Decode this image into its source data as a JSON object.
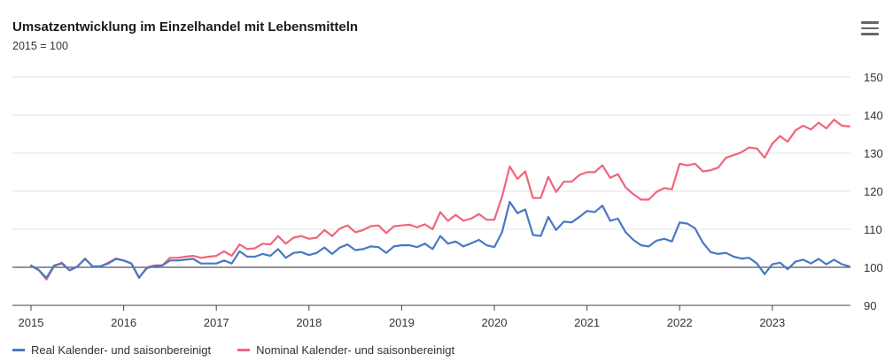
{
  "title": "Umsatzentwicklung im Einzelhandel mit Lebensmitteln",
  "subtitle": "2015 = 100",
  "menu_icon": "hamburger-menu-icon",
  "colors": {
    "real": "#4a78c2",
    "nominal": "#f0657c",
    "grid": "#e6e6e6",
    "baseline": "#555555"
  },
  "chart_data": {
    "type": "line",
    "title": "Umsatzentwicklung im Einzelhandel mit Lebensmitteln",
    "subtitle": "2015 = 100",
    "xlabel": "",
    "ylabel": "",
    "ylim": [
      90,
      150
    ],
    "yticks": [
      90,
      100,
      110,
      120,
      130,
      140,
      150
    ],
    "ytick_labels": [
      "90",
      "100",
      "110",
      "120",
      "130",
      "140",
      "150"
    ],
    "xticks": [
      "2015",
      "2016",
      "2017",
      "2018",
      "2019",
      "2020",
      "2021",
      "2022",
      "2023"
    ],
    "x_start": "2015-01",
    "grid": true,
    "reference_line": 100,
    "legend_position": "bottom-left",
    "series": [
      {
        "name": "Real Kalender- und saisonbereinigt",
        "color": "#4a78c2",
        "values": [
          100.5,
          99.3,
          97.2,
          100.5,
          101.0,
          99.2,
          100.2,
          102.2,
          100.2,
          100.3,
          101.0,
          102.2,
          101.8,
          101.0,
          97.3,
          99.8,
          100.3,
          100.5,
          101.8,
          101.8,
          102.0,
          102.2,
          101.0,
          101.0,
          101.0,
          101.8,
          101.0,
          104.2,
          102.8,
          102.8,
          103.5,
          103.0,
          104.8,
          102.5,
          103.8,
          104.0,
          103.2,
          103.8,
          105.2,
          103.5,
          105.2,
          106.0,
          104.5,
          104.8,
          105.5,
          105.3,
          103.8,
          105.5,
          105.8,
          105.8,
          105.3,
          106.2,
          104.8,
          108.2,
          106.2,
          106.8,
          105.5,
          106.3,
          107.2,
          105.8,
          105.3,
          109.2,
          117.2,
          114.2,
          115.2,
          108.5,
          108.2,
          113.2,
          109.8,
          112.0,
          111.8,
          113.2,
          114.8,
          114.5,
          116.2,
          112.2,
          112.8,
          109.2,
          107.2,
          105.8,
          105.5,
          107.0,
          107.5,
          106.8,
          111.8,
          111.5,
          110.2,
          106.5,
          104.0,
          103.5,
          103.8,
          102.8,
          102.3,
          102.5,
          101.0,
          98.2,
          100.8,
          101.2,
          99.5,
          101.5,
          102.0,
          101.0,
          102.2,
          100.8,
          102.0,
          100.8,
          100.2
        ]
      },
      {
        "name": "Nominal Kalender- und saisonbereinigt",
        "color": "#f0657c",
        "values": [
          100.3,
          99.3,
          96.8,
          100.3,
          101.2,
          99.2,
          100.2,
          102.3,
          100.2,
          100.2,
          101.2,
          102.3,
          101.8,
          101.0,
          97.2,
          100.0,
          100.5,
          100.5,
          102.5,
          102.5,
          102.8,
          103.0,
          102.5,
          102.8,
          103.0,
          104.2,
          103.0,
          106.0,
          104.8,
          105.0,
          106.2,
          106.0,
          108.2,
          106.2,
          107.8,
          108.2,
          107.5,
          107.8,
          109.8,
          108.2,
          110.2,
          111.0,
          109.2,
          109.8,
          110.8,
          111.0,
          109.0,
          110.8,
          111.0,
          111.2,
          110.5,
          111.3,
          110.0,
          114.5,
          112.2,
          113.8,
          112.2,
          112.8,
          114.0,
          112.5,
          112.5,
          118.5,
          126.5,
          123.2,
          125.2,
          118.2,
          118.2,
          123.8,
          119.8,
          122.5,
          122.5,
          124.2,
          125.0,
          125.0,
          126.8,
          123.5,
          124.5,
          121.0,
          119.2,
          117.8,
          117.8,
          119.8,
          120.8,
          120.5,
          127.2,
          126.8,
          127.2,
          125.2,
          125.5,
          126.2,
          128.8,
          129.5,
          130.2,
          131.5,
          131.2,
          128.8,
          132.5,
          134.5,
          133.0,
          136.0,
          137.2,
          136.2,
          138.0,
          136.5,
          138.8,
          137.2,
          137.0
        ]
      }
    ]
  },
  "legend": [
    {
      "label": "Real Kalender- und saisonbereinigt",
      "color": "#4a78c2"
    },
    {
      "label": "Nominal Kalender- und saisonbereinigt",
      "color": "#f0657c"
    }
  ]
}
